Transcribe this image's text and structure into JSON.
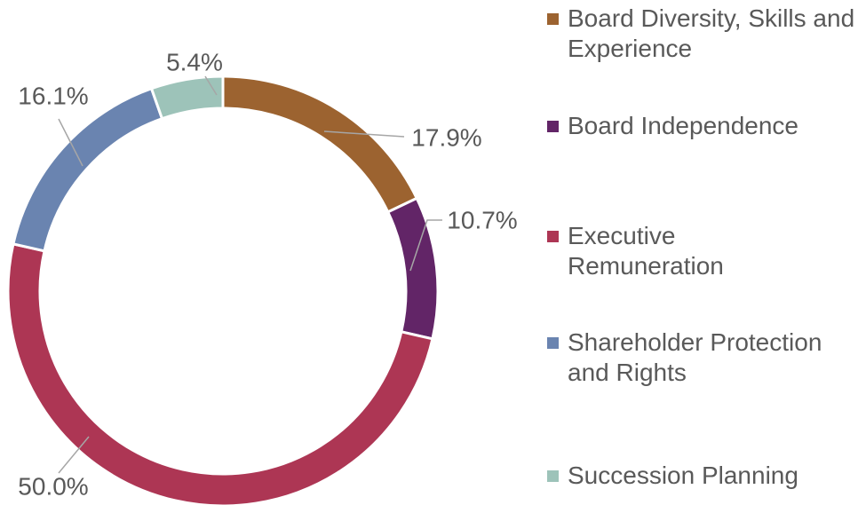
{
  "chart_data": {
    "type": "donut",
    "categories": [
      "Board Diversity, Skills and Experience",
      "Board Independence",
      "Executive Remuneration",
      "Shareholder Protection and Rights",
      "Succession Planning"
    ],
    "values": [
      17.9,
      10.7,
      50.0,
      16.1,
      5.4
    ],
    "value_labels": [
      "17.9%",
      "10.7%",
      "50.0%",
      "16.1%",
      "5.4%"
    ],
    "colors": [
      "#9c6330",
      "#622567",
      "#ad3654",
      "#6a84b0",
      "#9dc3b9"
    ],
    "legend": "right"
  }
}
